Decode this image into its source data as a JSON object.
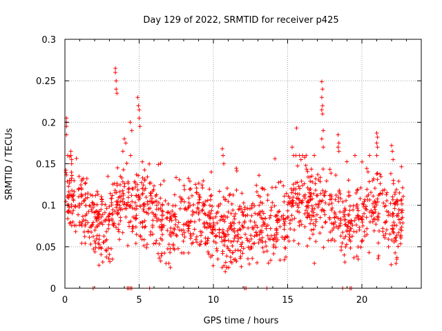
{
  "chart_data": {
    "type": "scatter",
    "title": "Day 129 of 2022, SRMTID for receiver p425",
    "xlabel": "GPS time / hours",
    "ylabel": "SRMTID / TECUs",
    "xlim": [
      0,
      24
    ],
    "ylim": [
      0,
      0.3
    ],
    "xticks": [
      0,
      5,
      10,
      15,
      20
    ],
    "yticks": [
      0,
      0.05,
      0.1,
      0.15,
      0.2,
      0.25,
      0.3
    ],
    "xtick_labels": [
      "0",
      "5",
      "10",
      "15",
      "20"
    ],
    "ytick_labels": [
      "0",
      "0.05",
      "0.1",
      "0.15",
      "0.2",
      "0.25",
      "0.3"
    ],
    "grid": true,
    "marker": "+",
    "color": "#ff0000",
    "data_range": [
      0,
      22.8
    ],
    "baseline_points": [
      [
        1.9,
        0
      ],
      [
        4.2,
        0
      ],
      [
        4.3,
        0
      ],
      [
        4.4,
        0
      ],
      [
        4.5,
        0
      ],
      [
        5.7,
        0
      ],
      [
        12.1,
        0
      ],
      [
        12.2,
        0
      ],
      [
        13.6,
        0
      ],
      [
        18.7,
        0
      ],
      [
        19.2,
        0
      ],
      [
        19.3,
        0
      ]
    ],
    "spikes": [
      [
        0.1,
        0.205
      ],
      [
        0.1,
        0.2
      ],
      [
        0.1,
        0.195
      ],
      [
        0.1,
        0.185
      ],
      [
        0.4,
        0.165
      ],
      [
        0.4,
        0.16
      ],
      [
        0.45,
        0.155
      ],
      [
        0.45,
        0.15
      ],
      [
        3.4,
        0.265
      ],
      [
        3.4,
        0.26
      ],
      [
        3.45,
        0.25
      ],
      [
        3.45,
        0.24
      ],
      [
        3.5,
        0.235
      ],
      [
        4.4,
        0.2
      ],
      [
        4.5,
        0.19
      ],
      [
        4.9,
        0.23
      ],
      [
        4.95,
        0.22
      ],
      [
        5.0,
        0.215
      ],
      [
        5.0,
        0.205
      ],
      [
        5.05,
        0.195
      ],
      [
        4.0,
        0.18
      ],
      [
        4.1,
        0.175
      ],
      [
        3.9,
        0.165
      ],
      [
        10.6,
        0.168
      ],
      [
        10.65,
        0.16
      ],
      [
        10.7,
        0.15
      ],
      [
        15.6,
        0.193
      ],
      [
        15.3,
        0.17
      ],
      [
        15.4,
        0.16
      ],
      [
        16.0,
        0.16
      ],
      [
        15.9,
        0.155
      ],
      [
        17.3,
        0.249
      ],
      [
        17.35,
        0.24
      ],
      [
        17.3,
        0.23
      ],
      [
        17.35,
        0.22
      ],
      [
        17.3,
        0.215
      ],
      [
        17.35,
        0.21
      ],
      [
        17.4,
        0.19
      ],
      [
        17.3,
        0.18
      ],
      [
        17.4,
        0.17
      ],
      [
        18.4,
        0.185
      ],
      [
        18.45,
        0.175
      ],
      [
        18.4,
        0.17
      ],
      [
        18.45,
        0.165
      ],
      [
        21.0,
        0.187
      ],
      [
        21.05,
        0.182
      ],
      [
        21.0,
        0.175
      ],
      [
        21.05,
        0.17
      ],
      [
        21.0,
        0.16
      ],
      [
        22.0,
        0.172
      ],
      [
        22.05,
        0.165
      ],
      [
        22.1,
        0.155
      ],
      [
        3.2,
        0.035
      ],
      [
        2.8,
        0.045
      ],
      [
        10.8,
        0.02
      ],
      [
        10.9,
        0.025
      ],
      [
        7.0,
        0.03
      ],
      [
        7.1,
        0.025
      ],
      [
        16.8,
        0.03
      ],
      [
        22.3,
        0.03
      ],
      [
        22.35,
        0.035
      ]
    ],
    "profile": [
      [
        0,
        0.11
      ],
      [
        0.5,
        0.105
      ],
      [
        1,
        0.1
      ],
      [
        1.5,
        0.09
      ],
      [
        2,
        0.08
      ],
      [
        2.5,
        0.075
      ],
      [
        3,
        0.085
      ],
      [
        3.5,
        0.1
      ],
      [
        4,
        0.11
      ],
      [
        4.5,
        0.1
      ],
      [
        5,
        0.1
      ],
      [
        5.5,
        0.095
      ],
      [
        6,
        0.09
      ],
      [
        6.5,
        0.08
      ],
      [
        7,
        0.07
      ],
      [
        7.5,
        0.075
      ],
      [
        8,
        0.08
      ],
      [
        8.5,
        0.09
      ],
      [
        9,
        0.095
      ],
      [
        9.5,
        0.085
      ],
      [
        10,
        0.075
      ],
      [
        10.5,
        0.065
      ],
      [
        11,
        0.06
      ],
      [
        11.5,
        0.065
      ],
      [
        12,
        0.07
      ],
      [
        12.5,
        0.075
      ],
      [
        13,
        0.08
      ],
      [
        13.5,
        0.075
      ],
      [
        14,
        0.07
      ],
      [
        14.5,
        0.075
      ],
      [
        15,
        0.085
      ],
      [
        15.5,
        0.1
      ],
      [
        16,
        0.11
      ],
      [
        16.5,
        0.1
      ],
      [
        17,
        0.095
      ],
      [
        17.5,
        0.09
      ],
      [
        18,
        0.085
      ],
      [
        18.5,
        0.08
      ],
      [
        19,
        0.08
      ],
      [
        19.5,
        0.085
      ],
      [
        20,
        0.085
      ],
      [
        20.5,
        0.09
      ],
      [
        21,
        0.095
      ],
      [
        21.5,
        0.09
      ],
      [
        22,
        0.085
      ],
      [
        22.5,
        0.08
      ],
      [
        22.8,
        0.08
      ]
    ],
    "spread": 0.022,
    "samples": 1400,
    "seed": 129
  }
}
